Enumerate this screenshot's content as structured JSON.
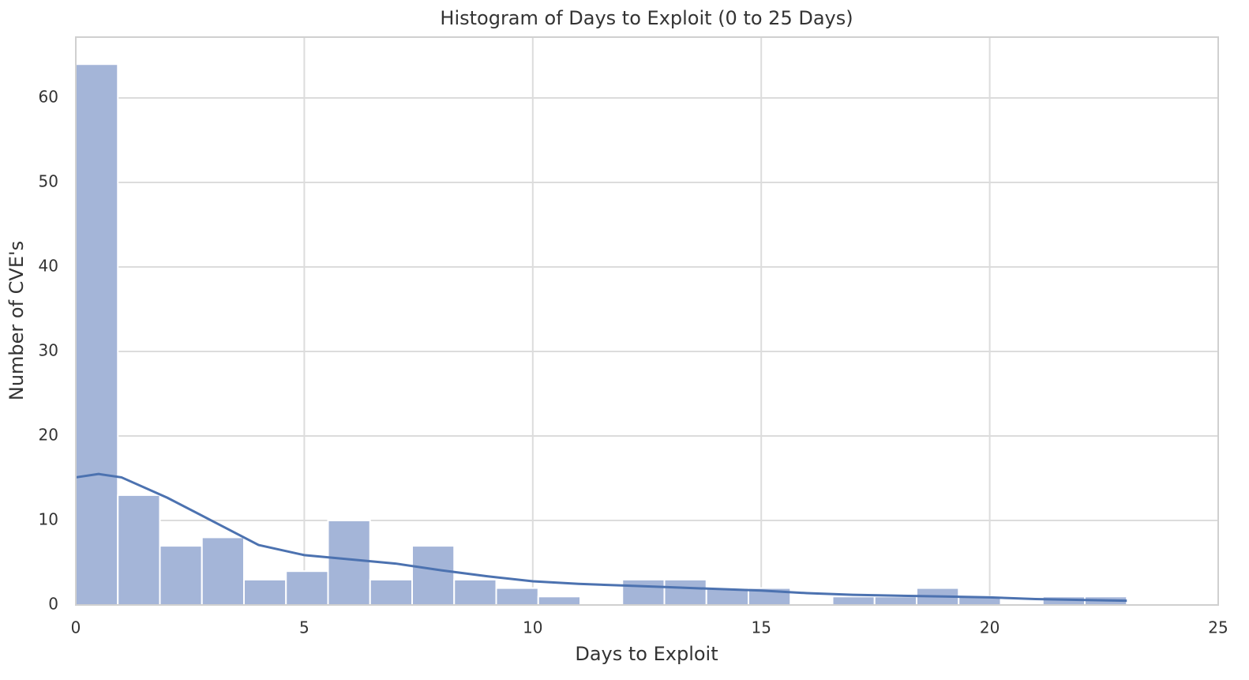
{
  "chart_data": {
    "type": "histogram",
    "title": "Histogram of Days to Exploit (0 to 25 Days)",
    "xlabel": "Days to Exploit",
    "ylabel": "Number of CVE's",
    "bins": [
      0,
      0.92,
      1.84,
      2.76,
      3.68,
      4.6,
      5.52,
      6.44,
      7.36,
      8.28,
      9.2,
      10.12,
      11.04,
      11.96,
      12.88,
      13.8,
      14.72,
      15.64,
      16.56,
      17.48,
      18.4,
      19.32,
      20.24,
      21.16,
      22.08,
      23
    ],
    "values": [
      64,
      13,
      7,
      8,
      3,
      4,
      10,
      3,
      7,
      3,
      2,
      1,
      0,
      3,
      3,
      2,
      2,
      0,
      1,
      1,
      2,
      1,
      0,
      1,
      1
    ],
    "color": "#a4b5d8",
    "kde": {
      "x": [
        0,
        0.5,
        1,
        2,
        3,
        4,
        5,
        6,
        7,
        8,
        9,
        10,
        11,
        12,
        13,
        14,
        15,
        16,
        17,
        18,
        19,
        20,
        21,
        22,
        23
      ],
      "values": [
        15.1,
        15.5,
        15.1,
        12.7,
        9.9,
        7.1,
        5.9,
        5.4,
        4.9,
        4.1,
        3.4,
        2.8,
        2.5,
        2.3,
        2.1,
        1.9,
        1.7,
        1.4,
        1.2,
        1.1,
        1.0,
        0.9,
        0.7,
        0.6,
        0.5
      ],
      "color": "#4c72b0"
    },
    "xlim": [
      0,
      25
    ],
    "xticks": [
      0,
      5,
      10,
      15,
      20,
      25
    ],
    "ylim": [
      0,
      67.2
    ],
    "yticks": [
      0,
      10,
      20,
      30,
      40,
      50,
      60
    ],
    "grid": true
  }
}
